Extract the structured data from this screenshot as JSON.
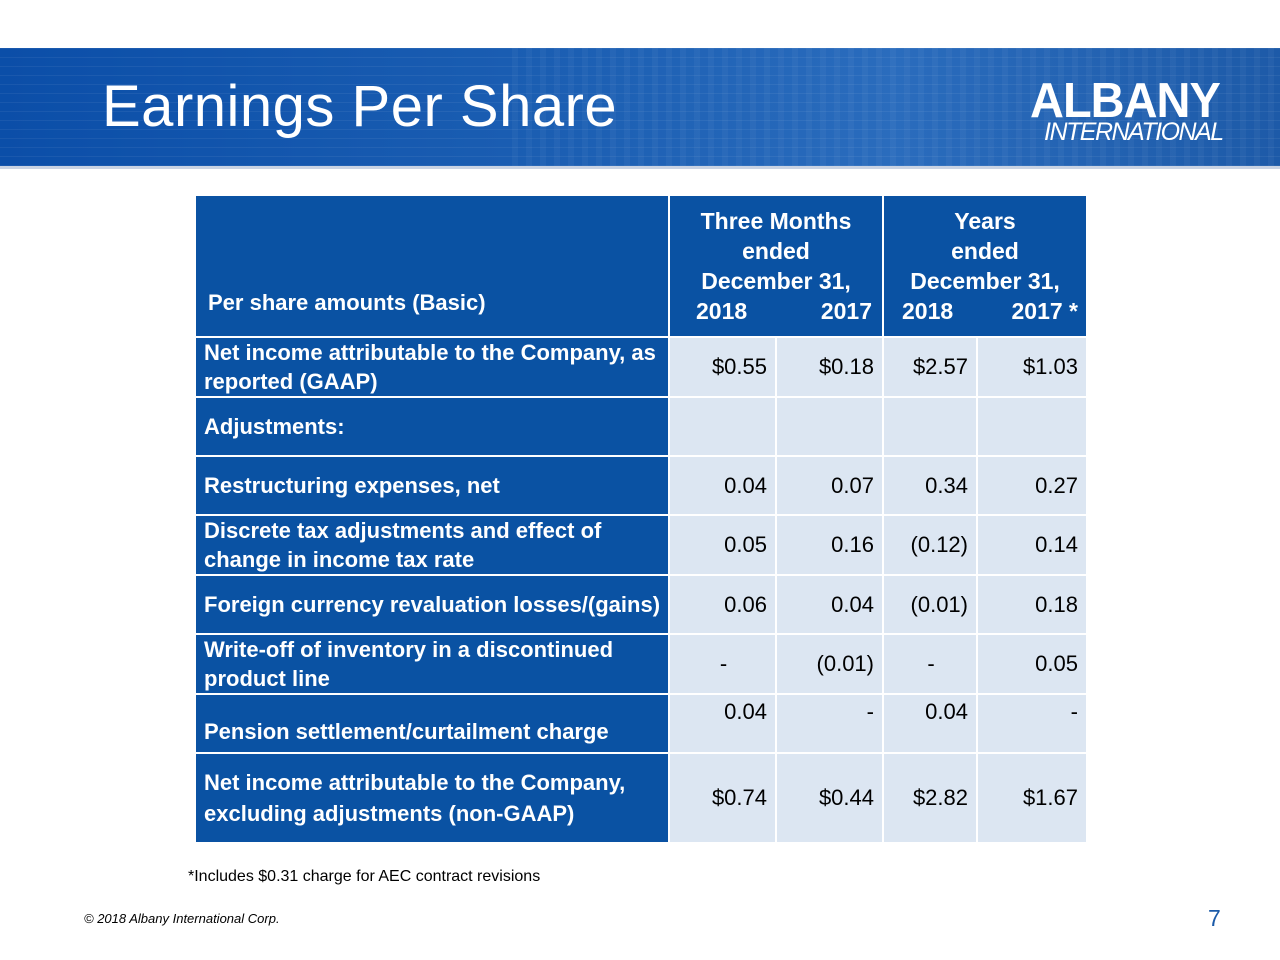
{
  "header": {
    "title": "Earnings Per Share",
    "logo_top": "ALBANY",
    "logo_bottom": "INTERNATIONAL"
  },
  "table": {
    "label_header": "Per share amounts (Basic)",
    "group1": {
      "line1": "Three Months",
      "line2": "ended",
      "line3": "December 31,",
      "year_a": "2018",
      "year_b": "2017"
    },
    "group2": {
      "line1": "Years",
      "line2": "ended",
      "line3": "December 31,",
      "year_a": "2018",
      "year_b": "2017 *"
    },
    "rows": [
      {
        "label": "Net income attributable to the Company, as reported (GAAP)",
        "values": [
          "$0.55",
          "$0.18",
          "$2.57",
          "$1.03"
        ]
      },
      {
        "label": "Adjustments:",
        "values": [
          "",
          "",
          "",
          ""
        ]
      },
      {
        "label": "Restructuring expenses, net",
        "values": [
          "0.04",
          "0.07",
          "0.34",
          "0.27"
        ]
      },
      {
        "label": "Discrete tax adjustments and effect of change in income tax rate",
        "values": [
          "0.05",
          "0.16",
          "(0.12)",
          "0.14"
        ]
      },
      {
        "label": "Foreign currency revaluation losses/(gains)",
        "values": [
          "0.06",
          "0.04",
          "(0.01)",
          "0.18"
        ]
      },
      {
        "label": "Write-off of inventory in a discontinued product line",
        "values": [
          "-",
          "(0.01)",
          "-",
          "0.05"
        ]
      },
      {
        "label": "Pension settlement/curtailment charge",
        "values": [
          "0.04",
          "-",
          "0.04",
          "-"
        ]
      },
      {
        "label": "Net income attributable to the Company, excluding adjustments (non-GAAP)",
        "values": [
          "$0.74",
          "$0.44",
          "$2.82",
          "$1.67"
        ]
      }
    ]
  },
  "footnote": "*Includes $0.31 charge for AEC contract revisions",
  "copyright": "© 2018 Albany International Corp.",
  "page_number": "7",
  "colors": {
    "brand_blue": "#0a52a3",
    "cell_light": "#dce6f2",
    "page_number": "#1a5aa8"
  }
}
